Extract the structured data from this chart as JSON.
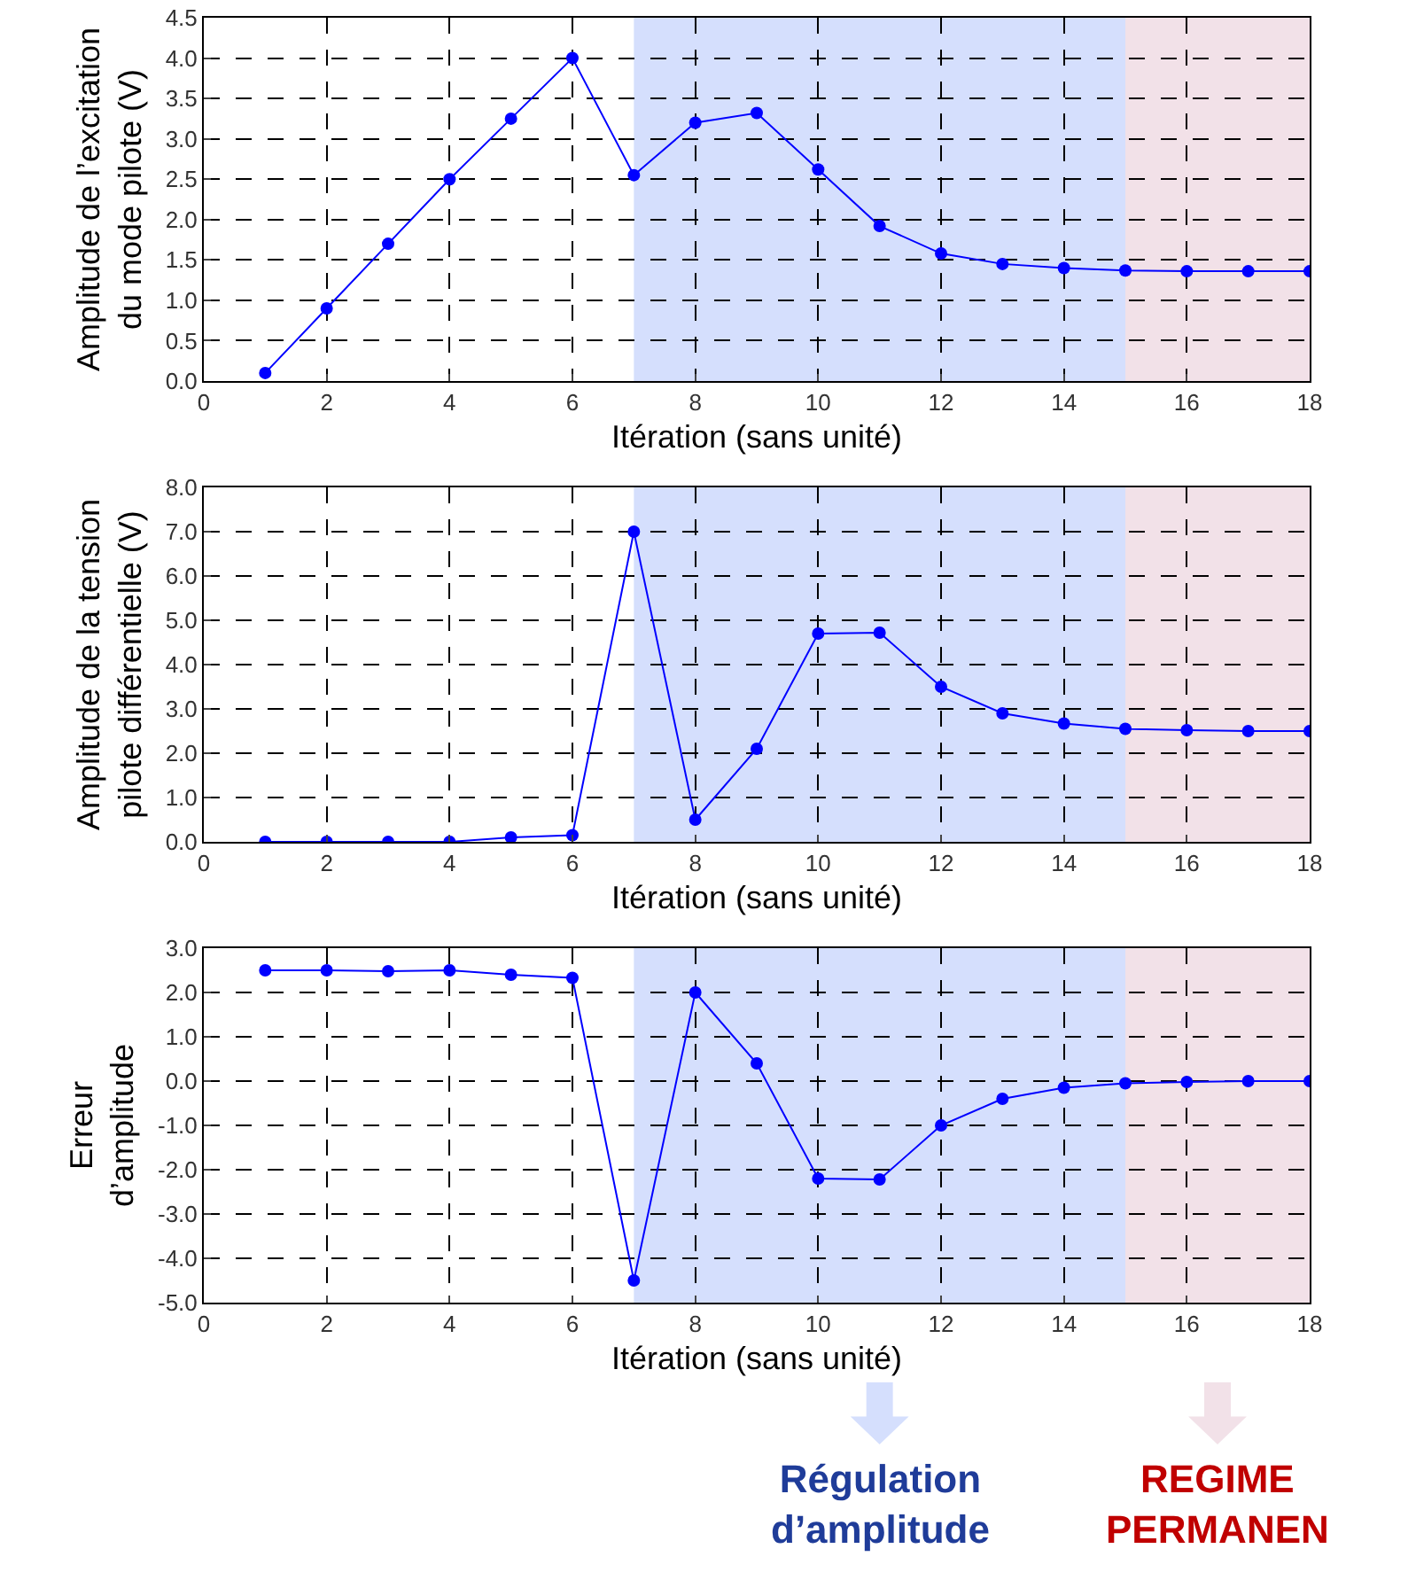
{
  "chart_data": [
    {
      "type": "line",
      "ylabel": "Amplitude de l’excitation\ndu mode pilote (V)",
      "xlabel": "Itération (sans unité)",
      "x": [
        1,
        2,
        3,
        4,
        5,
        6,
        7,
        8,
        9,
        10,
        11,
        12,
        13,
        14,
        15,
        16,
        17,
        18
      ],
      "series": [
        {
          "color": "#0000ff",
          "values": [
            0.1,
            0.9,
            1.7,
            2.5,
            3.25,
            4.0,
            2.55,
            3.2,
            3.32,
            2.62,
            1.92,
            1.58,
            1.45,
            1.4,
            1.37,
            1.36,
            1.36,
            1.36
          ]
        }
      ],
      "xlim": [
        0,
        18
      ],
      "xticks": [
        0,
        2,
        4,
        6,
        8,
        10,
        12,
        14,
        16,
        18
      ],
      "ylim": [
        0,
        4.5
      ],
      "yticks": [
        {
          "value": 0,
          "label": "0.0"
        },
        {
          "value": 0.5,
          "label": "0.5"
        },
        {
          "value": 1,
          "label": "1.0"
        },
        {
          "value": 1.5,
          "label": "1.5"
        },
        {
          "value": 2,
          "label": "2.0"
        },
        {
          "value": 2.5,
          "label": "2.5"
        },
        {
          "value": 3,
          "label": "3.0"
        },
        {
          "value": 3.5,
          "label": "3.5"
        },
        {
          "value": 4,
          "label": "4.0"
        },
        {
          "value": 4.5,
          "label": "4.5"
        }
      ],
      "bands": [
        {
          "axis": "x",
          "from": 7,
          "to": 15,
          "color": "#d5dffd"
        },
        {
          "axis": "x",
          "from": 15,
          "to": 18,
          "color": "#f2e1e8"
        }
      ],
      "grid": true,
      "marker": "circle",
      "line_style": "solid"
    },
    {
      "type": "line",
      "ylabel": "Amplitude de la tension\npilote différentielle (V)",
      "xlabel": "Itération (sans unité)",
      "x": [
        1,
        2,
        3,
        4,
        5,
        6,
        7,
        8,
        9,
        10,
        11,
        12,
        13,
        14,
        15,
        16,
        17,
        18
      ],
      "series": [
        {
          "color": "#0000ff",
          "values": [
            0,
            0,
            0,
            0,
            0.1,
            0.15,
            7.0,
            0.5,
            2.1,
            4.7,
            4.72,
            3.5,
            2.9,
            2.67,
            2.55,
            2.52,
            2.5,
            2.5
          ]
        }
      ],
      "xlim": [
        0,
        18
      ],
      "xticks": [
        0,
        2,
        4,
        6,
        8,
        10,
        12,
        14,
        16,
        18
      ],
      "ylim": [
        0,
        8
      ],
      "yticks": [
        {
          "value": 0,
          "label": "0.0"
        },
        {
          "value": 1,
          "label": "1.0"
        },
        {
          "value": 2,
          "label": "2.0"
        },
        {
          "value": 3,
          "label": "3.0"
        },
        {
          "value": 4,
          "label": "4.0"
        },
        {
          "value": 5,
          "label": "5.0"
        },
        {
          "value": 6,
          "label": "6.0"
        },
        {
          "value": 7,
          "label": "7.0"
        },
        {
          "value": 8,
          "label": "8.0"
        }
      ],
      "bands": [
        {
          "axis": "x",
          "from": 7,
          "to": 15,
          "color": "#d5dffd"
        },
        {
          "axis": "x",
          "from": 15,
          "to": 18,
          "color": "#f2e1e8"
        }
      ],
      "grid": true,
      "marker": "circle",
      "line_style": "solid"
    },
    {
      "type": "line",
      "ylabel": "Erreur\nd’amplitude",
      "xlabel": "Itération (sans unité)",
      "x": [
        1,
        2,
        3,
        4,
        5,
        6,
        7,
        8,
        9,
        10,
        11,
        12,
        13,
        14,
        15,
        16,
        17,
        18
      ],
      "series": [
        {
          "color": "#0000ff",
          "values": [
            2.5,
            2.5,
            2.48,
            2.5,
            2.4,
            2.33,
            -4.5,
            2.0,
            0.4,
            -2.2,
            -2.22,
            -1.0,
            -0.4,
            -0.15,
            -0.05,
            -0.02,
            0,
            0
          ]
        }
      ],
      "xlim": [
        0,
        18
      ],
      "xticks": [
        0,
        2,
        4,
        6,
        8,
        10,
        12,
        14,
        16,
        18
      ],
      "ylim": [
        -5,
        3
      ],
      "yticks": [
        {
          "value": -5,
          "label": "-5.0"
        },
        {
          "value": -4,
          "label": "-4.0"
        },
        {
          "value": -3,
          "label": "-3.0"
        },
        {
          "value": -2,
          "label": "-2.0"
        },
        {
          "value": -1,
          "label": "-1.0"
        },
        {
          "value": 0,
          "label": "0.0"
        },
        {
          "value": 1,
          "label": "1.0"
        },
        {
          "value": 2,
          "label": "2.0"
        },
        {
          "value": 3,
          "label": "3.0"
        }
      ],
      "bands": [
        {
          "axis": "x",
          "from": 7,
          "to": 15,
          "color": "#d5dffd",
          "label": "Régulation\nd’amplitude"
        },
        {
          "axis": "x",
          "from": 15,
          "to": 18,
          "color": "#f2e1e8",
          "label": "REGIME\nPERMANEN"
        }
      ],
      "grid": true,
      "legend": "bottom right",
      "marker": "circle",
      "line_style": "solid"
    }
  ]
}
